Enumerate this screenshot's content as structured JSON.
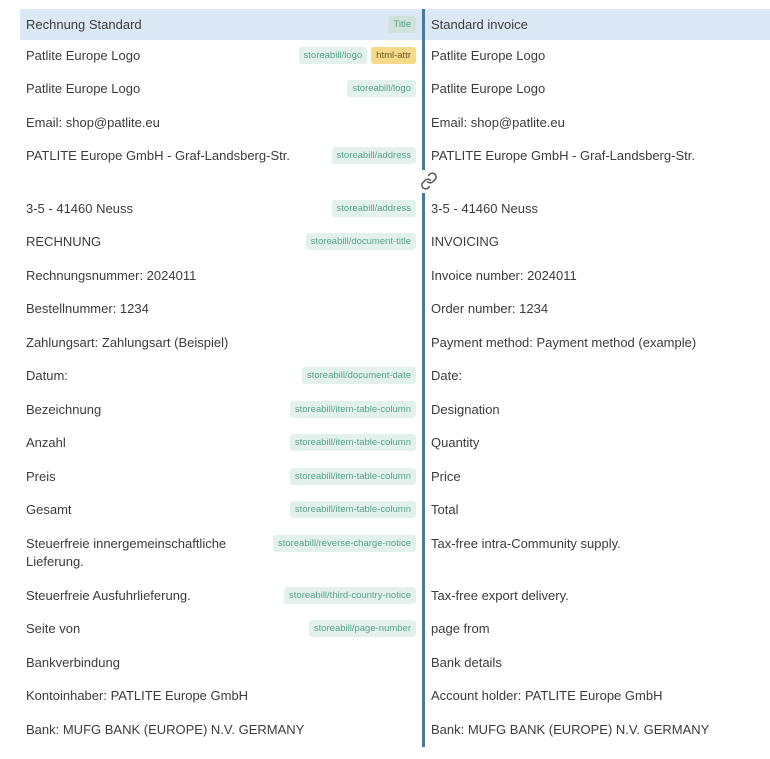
{
  "rows": [
    {
      "source": "Rechnung Standard",
      "target": "Standard invoice",
      "tags": [
        {
          "label": "Title",
          "kind": "title"
        }
      ],
      "header": true
    },
    {
      "source": "Patlite Europe Logo",
      "target": "Patlite Europe Logo",
      "tags": [
        {
          "label": "storeabill/logo",
          "kind": "block"
        },
        {
          "label": "html-attr",
          "kind": "attr"
        }
      ]
    },
    {
      "source": "Patlite Europe Logo",
      "target": "Patlite Europe Logo",
      "tags": [
        {
          "label": "storeabill/logo",
          "kind": "block"
        }
      ]
    },
    {
      "source": "Email: shop@patlite.eu",
      "target": "Email: shop@patlite.eu",
      "tags": []
    },
    {
      "source": "PATLITE Europe GmbH - Graf-Landsberg-Str.",
      "target": "PATLITE Europe GmbH - Graf-Landsberg-Str.",
      "tags": [
        {
          "label": "storeabill/address",
          "kind": "block"
        }
      ]
    },
    {
      "source": "3-5 - 41460 Neuss",
      "target": "3-5 - 41460 Neuss",
      "tags": [
        {
          "label": "storeabill/address",
          "kind": "block"
        }
      ]
    },
    {
      "source": "RECHNUNG",
      "target": "INVOICING",
      "tags": [
        {
          "label": "storeabill/document-title",
          "kind": "block"
        }
      ]
    },
    {
      "source": "Rechnungsnummer: 2024011",
      "target": "Invoice number: 2024011",
      "tags": []
    },
    {
      "source": "Bestellnummer: 1234",
      "target": "Order number: 1234",
      "tags": []
    },
    {
      "source": "Zahlungsart: Zahlungsart (Beispiel)",
      "target": "Payment method: Payment method (example)",
      "tags": []
    },
    {
      "source": "Datum:",
      "target": "Date:",
      "tags": [
        {
          "label": "storeabill/document-date",
          "kind": "block"
        }
      ]
    },
    {
      "source": "Bezeichnung",
      "target": "Designation",
      "tags": [
        {
          "label": "storeabill/item-table-column",
          "kind": "block"
        }
      ]
    },
    {
      "source": "Anzahl",
      "target": "Quantity",
      "tags": [
        {
          "label": "storeabill/item-table-column",
          "kind": "block"
        }
      ]
    },
    {
      "source": "Preis",
      "target": "Price",
      "tags": [
        {
          "label": "storeabill/item-table-column",
          "kind": "block"
        }
      ]
    },
    {
      "source": "Gesamt",
      "target": "Total",
      "tags": [
        {
          "label": "storeabill/item-table-column",
          "kind": "block"
        }
      ]
    },
    {
      "source": "Steuerfreie innergemeinschaftliche Lieferung.",
      "target": "Tax-free intra-Community supply.",
      "tags": [
        {
          "label": "storeabill/reverse-charge-notice",
          "kind": "block"
        }
      ]
    },
    {
      "source": "Steuerfreie Ausfuhrlieferung.",
      "target": "Tax-free export delivery.",
      "tags": [
        {
          "label": "storeabill/third-country-notice",
          "kind": "block"
        }
      ]
    },
    {
      "source": "Seite von",
      "target": "page from",
      "tags": [
        {
          "label": "storeabill/page-number",
          "kind": "block"
        }
      ]
    },
    {
      "source": "Bankverbindung",
      "target": "Bank details",
      "tags": []
    },
    {
      "source": "Kontoinhaber: PATLITE Europe GmbH",
      "target": "Account holder: PATLITE Europe GmbH",
      "tags": []
    },
    {
      "source": "Bank: MUFG BANK (EUROPE) N.V. GERMANY",
      "target": "Bank: MUFG BANK (EUROPE) N.V. GERMANY",
      "tags": []
    }
  ],
  "link_after_row": 4,
  "icons": {
    "link": "link-icon"
  }
}
